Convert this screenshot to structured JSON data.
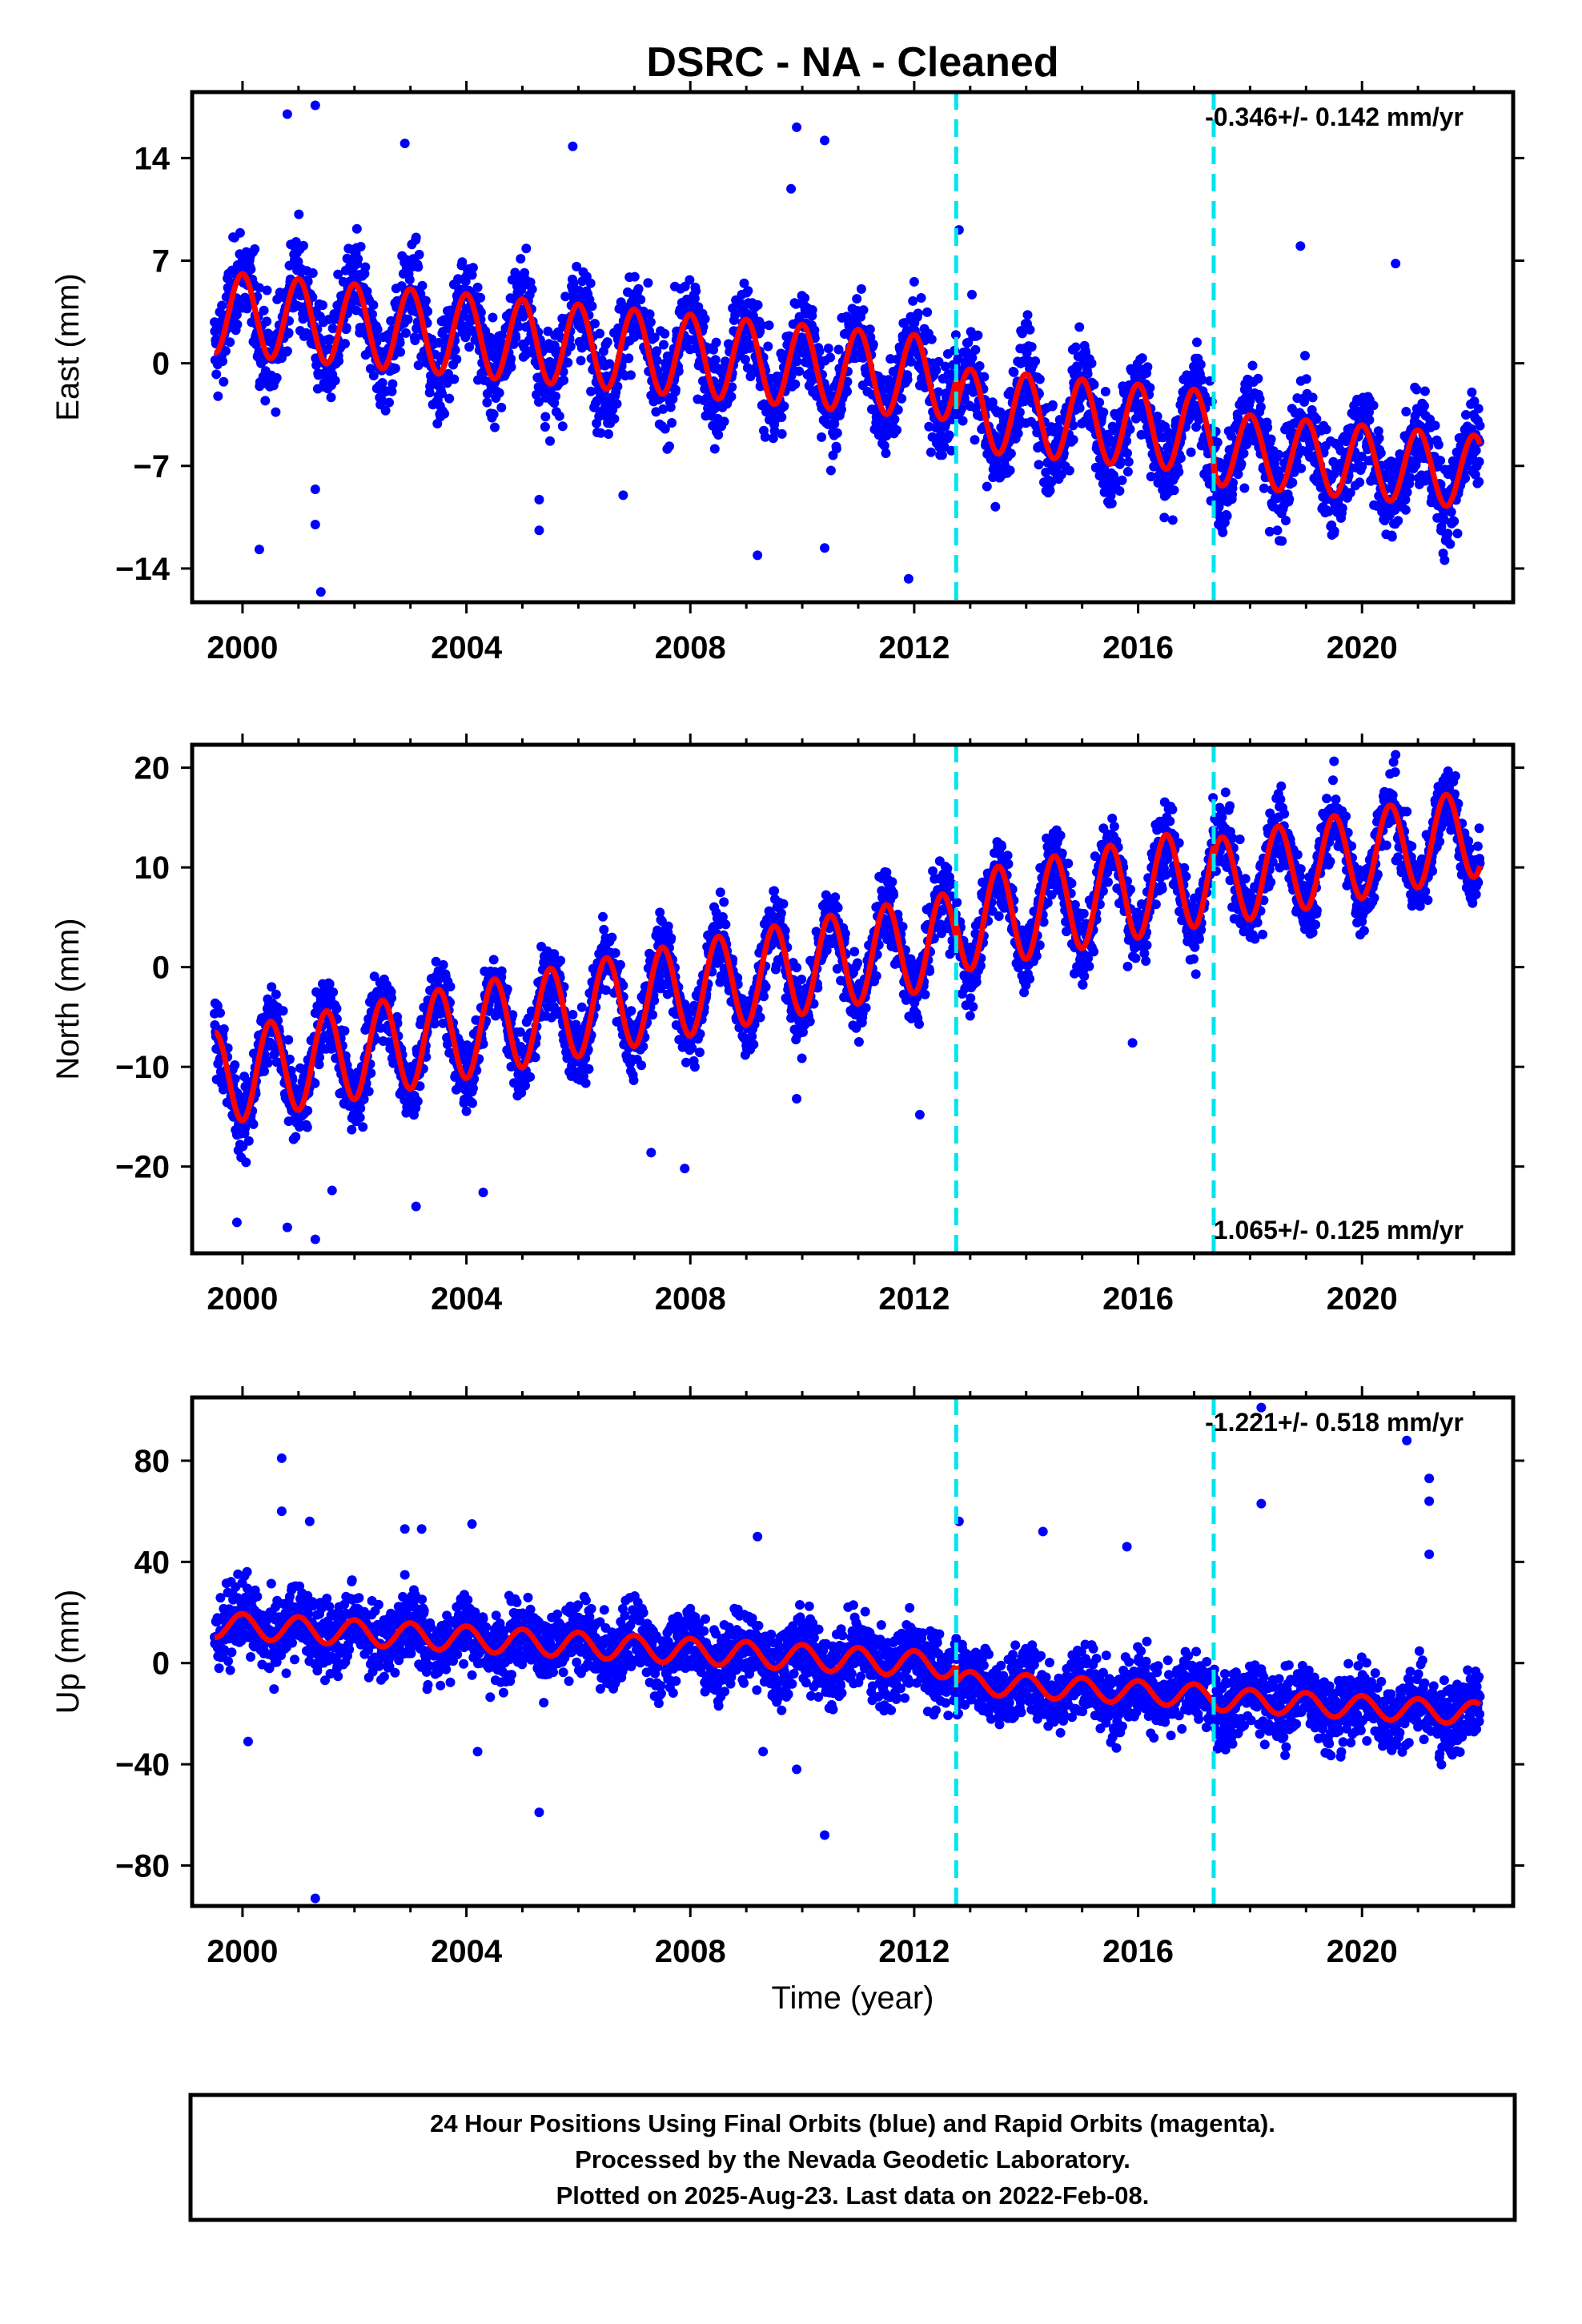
{
  "title": "DSRC  - NA - Cleaned",
  "x_axis_label": "Time (year)",
  "footer": {
    "line1": "24 Hour Positions Using Final Orbits (blue) and Rapid Orbits (magenta).",
    "line2": "Processed by the Nevada Geodetic Laboratory.",
    "line3": "Plotted on 2025-Aug-23. Last data on 2022-Feb-08."
  },
  "colors": {
    "points": "#0000ff",
    "model": "#ff0000",
    "breaks": "#00e5ee",
    "frame": "#000000"
  },
  "chart_data": [
    {
      "type": "scatter",
      "panel": "east",
      "ylabel": "East (mm)",
      "rate_text": "-0.346+/- 0.142 mm/yr",
      "rate_position": "top-right",
      "xlim": [
        1999.1,
        2022.7
      ],
      "ylim": [
        -16.3,
        18.5
      ],
      "xticks": [
        2000,
        2004,
        2008,
        2012,
        2016,
        2020
      ],
      "yticks": [
        -14,
        -7,
        0,
        7,
        14
      ],
      "grid": false,
      "time_span": [
        1999.5,
        2022.11
      ],
      "break_epochs": [
        2012.75,
        2017.35
      ],
      "model_segments": [
        {
          "t0": 1999.5,
          "t1": 2012.75,
          "offset": 3.3,
          "rate": -0.346,
          "amp": 2.8,
          "phase_year": 0.0
        },
        {
          "t0": 2012.75,
          "t1": 2017.35,
          "offset": 1.3,
          "rate": -0.346,
          "amp": 2.8,
          "phase_year": 0.0
        },
        {
          "t0": 2017.35,
          "t1": 2022.11,
          "offset": 0.2,
          "rate": -0.346,
          "amp": 2.5,
          "phase_year": 0.0
        }
      ],
      "scatter_sigma": 1.6,
      "outliers": [
        {
          "x": 2000.8,
          "y": 17.0
        },
        {
          "x": 2001.3,
          "y": 17.6
        },
        {
          "x": 2002.9,
          "y": 15.0
        },
        {
          "x": 2005.9,
          "y": 14.8
        },
        {
          "x": 2009.9,
          "y": 16.1
        },
        {
          "x": 2010.4,
          "y": 15.2
        },
        {
          "x": 2009.8,
          "y": 11.9
        },
        {
          "x": 2000.3,
          "y": -12.7
        },
        {
          "x": 2001.3,
          "y": -8.6
        },
        {
          "x": 2001.3,
          "y": -11.0
        },
        {
          "x": 2001.4,
          "y": -15.6
        },
        {
          "x": 2005.3,
          "y": -9.3
        },
        {
          "x": 2005.3,
          "y": -11.4
        },
        {
          "x": 2009.2,
          "y": -13.1
        },
        {
          "x": 2010.4,
          "y": -12.6
        },
        {
          "x": 2011.9,
          "y": -14.7
        },
        {
          "x": 2006.8,
          "y": -9.0
        },
        {
          "x": 2019.5,
          "y": -11.6
        },
        {
          "x": 2020.6,
          "y": 6.8
        },
        {
          "x": 2012.8,
          "y": 9.1
        },
        {
          "x": 2018.9,
          "y": 8.0
        }
      ]
    },
    {
      "type": "scatter",
      "panel": "north",
      "ylabel": "North (mm)",
      "rate_text": "1.065+/- 0.125 mm/yr",
      "rate_position": "bottom-right",
      "xlim": [
        1999.1,
        2022.7
      ],
      "ylim": [
        -28.7,
        22.3
      ],
      "xticks": [
        2000,
        2004,
        2008,
        2012,
        2016,
        2020
      ],
      "yticks": [
        -20,
        -10,
        0,
        10,
        20
      ],
      "grid": false,
      "time_span": [
        1999.5,
        2022.11
      ],
      "break_epochs": [
        2012.75,
        2017.35
      ],
      "model_segments": [
        {
          "t0": 1999.5,
          "t1": 2012.75,
          "offset": -10.7,
          "rate": 1.065,
          "amp": 4.7,
          "phase_year": 0.5
        },
        {
          "t0": 2012.75,
          "t1": 2017.35,
          "offset": -9.2,
          "rate": 1.065,
          "amp": 4.9,
          "phase_year": 0.5
        },
        {
          "t0": 2017.35,
          "t1": 2022.11,
          "offset": -10.0,
          "rate": 1.065,
          "amp": 4.4,
          "phase_year": 0.5
        }
      ],
      "scatter_sigma": 1.8,
      "outliers": [
        {
          "x": 1999.9,
          "y": -25.6
        },
        {
          "x": 2000.8,
          "y": -26.1
        },
        {
          "x": 2001.3,
          "y": -27.3
        },
        {
          "x": 2001.6,
          "y": -22.4
        },
        {
          "x": 2003.1,
          "y": -24.0
        },
        {
          "x": 2004.3,
          "y": -22.6
        },
        {
          "x": 2007.3,
          "y": -18.6
        },
        {
          "x": 2007.9,
          "y": -20.2
        },
        {
          "x": 2009.9,
          "y": -13.2
        },
        {
          "x": 2012.1,
          "y": -14.8
        },
        {
          "x": 2015.9,
          "y": -7.6
        },
        {
          "x": 2020.6,
          "y": 21.3
        }
      ]
    },
    {
      "type": "scatter",
      "panel": "up",
      "ylabel": "Up (mm)",
      "rate_text": "-1.221+/- 0.518 mm/yr",
      "rate_position": "top-right",
      "xlim": [
        1999.1,
        2022.7
      ],
      "ylim": [
        -96,
        105
      ],
      "xticks": [
        2000,
        2004,
        2008,
        2012,
        2016,
        2020
      ],
      "yticks": [
        -80,
        -40,
        0,
        40,
        80
      ],
      "grid": false,
      "time_span": [
        1999.5,
        2022.11
      ],
      "break_epochs": [
        2012.75,
        2017.35
      ],
      "model_segments": [
        {
          "t0": 1999.5,
          "t1": 2012.75,
          "offset": 14.5,
          "rate": -1.221,
          "amp": 5.0,
          "phase_year": 0.0
        },
        {
          "t0": 2012.75,
          "t1": 2017.35,
          "offset": 8.0,
          "rate": -1.221,
          "amp": 4.5,
          "phase_year": 0.0
        },
        {
          "t0": 2017.35,
          "t1": 2022.11,
          "offset": 7.0,
          "rate": -1.221,
          "amp": 4.5,
          "phase_year": 0.0
        }
      ],
      "scatter_sigma": 7.0,
      "outliers": [
        {
          "x": 2000.7,
          "y": 81
        },
        {
          "x": 2000.7,
          "y": 60
        },
        {
          "x": 2001.2,
          "y": 56
        },
        {
          "x": 2002.9,
          "y": 53
        },
        {
          "x": 2003.2,
          "y": 53
        },
        {
          "x": 2004.1,
          "y": 55
        },
        {
          "x": 2009.2,
          "y": 50
        },
        {
          "x": 2014.3,
          "y": 52
        },
        {
          "x": 2015.8,
          "y": 46
        },
        {
          "x": 2018.2,
          "y": 101
        },
        {
          "x": 2018.2,
          "y": 63
        },
        {
          "x": 2020.8,
          "y": 88
        },
        {
          "x": 2021.2,
          "y": 73
        },
        {
          "x": 2021.2,
          "y": 64
        },
        {
          "x": 2021.2,
          "y": 43
        },
        {
          "x": 2001.3,
          "y": -93
        },
        {
          "x": 2005.3,
          "y": -59
        },
        {
          "x": 2004.2,
          "y": -35
        },
        {
          "x": 2010.4,
          "y": -68
        },
        {
          "x": 2009.9,
          "y": -42
        },
        {
          "x": 2000.1,
          "y": -31
        },
        {
          "x": 2009.3,
          "y": -35
        },
        {
          "x": 2012.8,
          "y": 56
        }
      ]
    }
  ]
}
